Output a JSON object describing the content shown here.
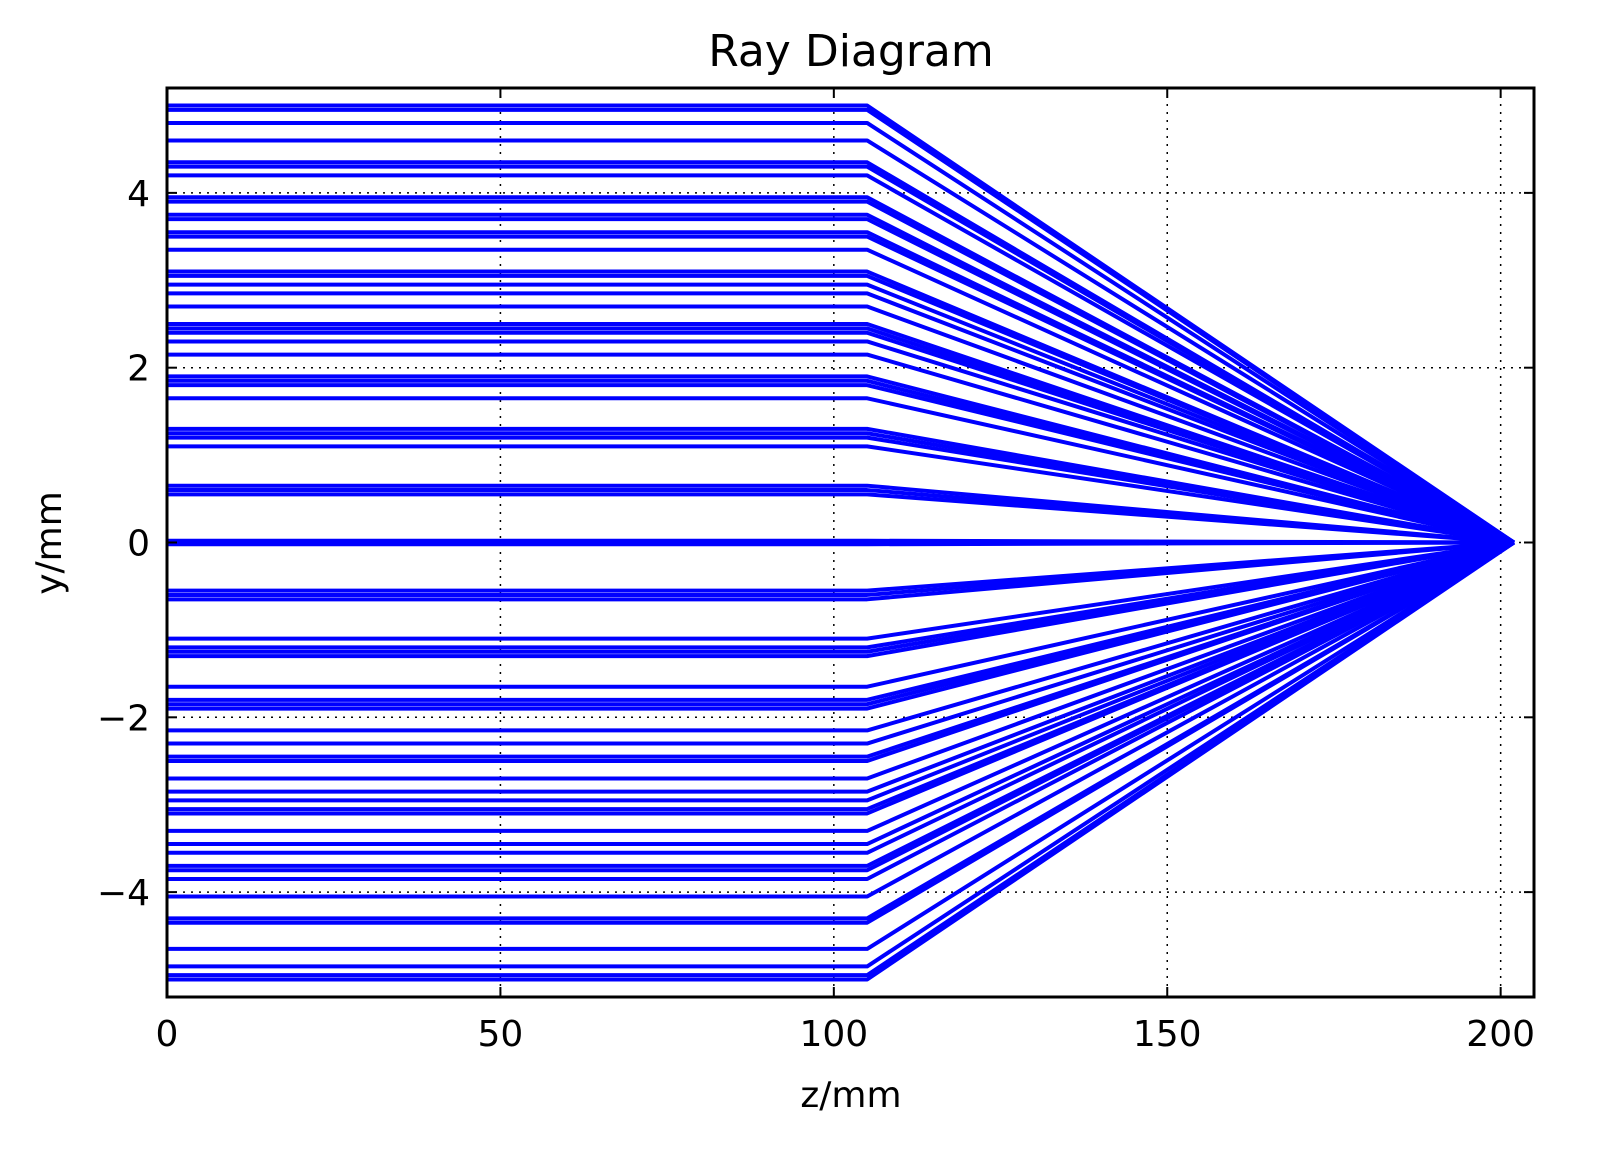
{
  "chart_data": {
    "type": "line",
    "title": "Ray Diagram",
    "xlabel": "z/mm",
    "ylabel": "y/mm",
    "xlim": [
      0,
      205
    ],
    "ylim": [
      -5.2,
      5.2
    ],
    "xticks": [
      0,
      50,
      100,
      150,
      200
    ],
    "yticks": [
      -4,
      -2,
      0,
      2,
      4
    ],
    "xtick_labels": [
      "0",
      "50",
      "100",
      "150",
      "200"
    ],
    "ytick_labels": [
      "−4",
      "−2",
      "0",
      "2",
      "4"
    ],
    "grid": true,
    "lens_z": 105,
    "focus": [
      202,
      0
    ],
    "ray_color": "#0000ff",
    "ray_heights": [
      5.0,
      4.95,
      4.8,
      4.6,
      4.35,
      4.3,
      4.2,
      3.95,
      3.9,
      3.75,
      3.7,
      3.55,
      3.5,
      3.35,
      3.1,
      3.05,
      2.95,
      2.85,
      2.7,
      2.5,
      2.45,
      2.4,
      2.3,
      2.15,
      1.9,
      1.85,
      1.8,
      1.65,
      1.3,
      1.25,
      1.2,
      1.1,
      0.65,
      0.6,
      0.55,
      0.02,
      -0.02,
      -0.55,
      -0.6,
      -0.65,
      -1.1,
      -1.2,
      -1.25,
      -1.3,
      -1.65,
      -1.8,
      -1.85,
      -1.9,
      -2.15,
      -2.3,
      -2.45,
      -2.5,
      -2.7,
      -2.85,
      -2.95,
      -3.05,
      -3.1,
      -3.3,
      -3.45,
      -3.55,
      -3.7,
      -3.75,
      -3.85,
      -4.05,
      -4.3,
      -4.35,
      -4.65,
      -4.85,
      -4.95,
      -5.0
    ]
  }
}
